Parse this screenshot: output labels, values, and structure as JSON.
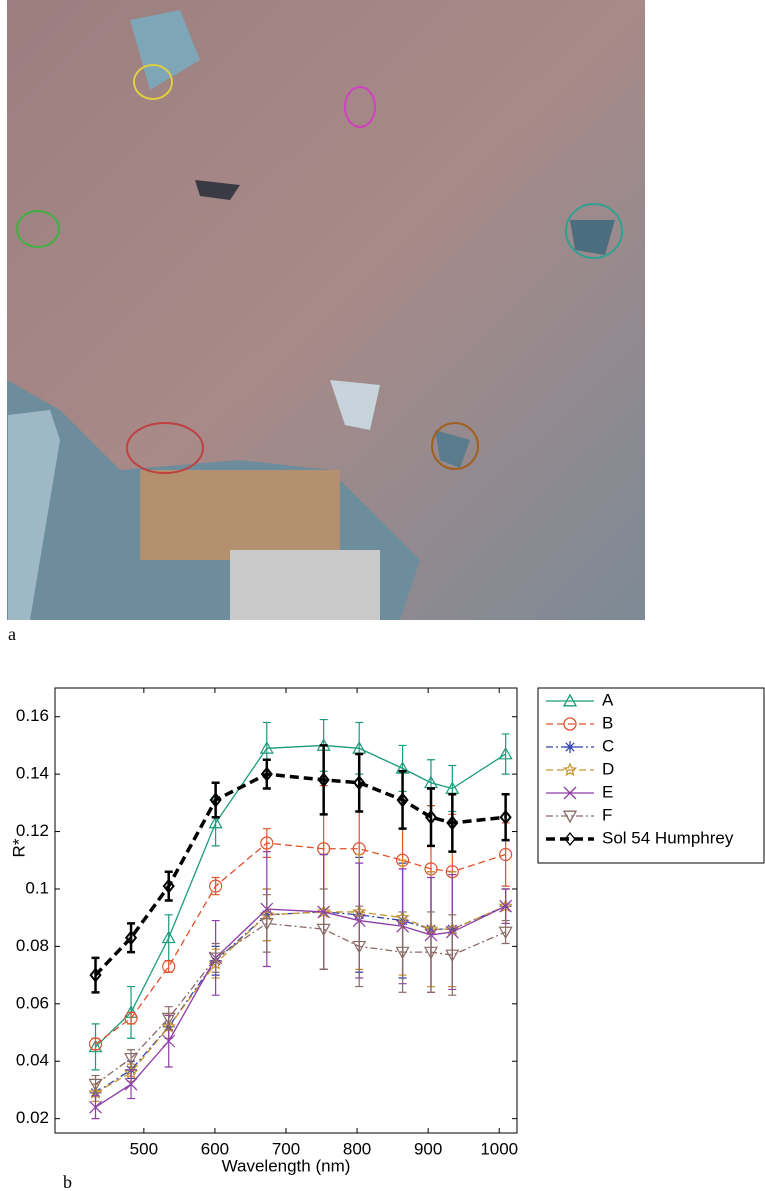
{
  "panel_labels": [
    "a",
    "b"
  ],
  "chart_data": {
    "type": "line",
    "x_label": "Wavelength (nm)",
    "y_label": "R*",
    "x": [
      432,
      482,
      535,
      601,
      673,
      753,
      803,
      864,
      904,
      934,
      1009
    ],
    "xlim": [
      375,
      1025
    ],
    "ylim": [
      0.015,
      0.17
    ],
    "xticks": [
      500,
      600,
      700,
      800,
      900,
      1000
    ],
    "yticks": [
      0.02,
      0.04,
      0.06,
      0.08,
      0.1,
      0.12,
      0.14,
      0.16
    ],
    "legend": "outside-right",
    "series": [
      {
        "name": "A",
        "color": "#1a9b7b",
        "dash": "solid",
        "marker": "triangle",
        "values": [
          0.045,
          0.057,
          0.083,
          0.123,
          0.149,
          0.15,
          0.149,
          0.142,
          0.137,
          0.135,
          0.147
        ],
        "errors": [
          0.008,
          0.009,
          0.008,
          0.008,
          0.009,
          0.009,
          0.009,
          0.008,
          0.008,
          0.008,
          0.007
        ]
      },
      {
        "name": "B",
        "color": "#e0522b",
        "dash": "dashed",
        "marker": "circle",
        "values": [
          0.046,
          0.055,
          0.073,
          0.101,
          0.116,
          0.114,
          0.114,
          0.11,
          0.107,
          0.106,
          0.112
        ],
        "errors": [
          0.002,
          0.002,
          0.002,
          0.003,
          0.005,
          0.022,
          0.022,
          0.022,
          0.022,
          0.02,
          0.011
        ]
      },
      {
        "name": "C",
        "color": "#3344aa",
        "dash": "dashdot",
        "marker": "asterisk",
        "values": [
          0.029,
          0.037,
          0.052,
          0.075,
          0.091,
          0.092,
          0.091,
          0.089,
          0.086,
          0.086,
          0.094
        ],
        "errors": [
          0.003,
          0.003,
          0.004,
          0.005,
          0.009,
          0.02,
          0.02,
          0.02,
          0.02,
          0.02,
          0.006
        ]
      },
      {
        "name": "D",
        "color": "#c9962f",
        "dash": "dashed",
        "marker": "star",
        "values": [
          0.029,
          0.036,
          0.052,
          0.074,
          0.091,
          0.092,
          0.092,
          0.09,
          0.086,
          0.086,
          0.094
        ],
        "errors": [
          0.003,
          0.003,
          0.004,
          0.005,
          0.009,
          0.02,
          0.02,
          0.02,
          0.02,
          0.02,
          0.006
        ]
      },
      {
        "name": "E",
        "color": "#8e3ca8",
        "dash": "solid",
        "marker": "x",
        "values": [
          0.024,
          0.032,
          0.047,
          0.076,
          0.093,
          0.092,
          0.089,
          0.087,
          0.084,
          0.085,
          0.094
        ],
        "errors": [
          0.004,
          0.005,
          0.009,
          0.013,
          0.02,
          0.02,
          0.02,
          0.02,
          0.02,
          0.02,
          0.006
        ]
      },
      {
        "name": "F",
        "color": "#8a6a66",
        "dash": "dashdot",
        "marker": "triangle-down",
        "values": [
          0.032,
          0.041,
          0.055,
          0.076,
          0.088,
          0.086,
          0.08,
          0.078,
          0.078,
          0.077,
          0.085
        ],
        "errors": [
          0.003,
          0.003,
          0.004,
          0.005,
          0.01,
          0.014,
          0.014,
          0.014,
          0.014,
          0.014,
          0.004
        ]
      },
      {
        "name": "Sol 54 Humphrey",
        "color": "#000000",
        "dash": "thick-dashed",
        "marker": "diamond",
        "values": [
          0.07,
          0.083,
          0.101,
          0.131,
          0.14,
          0.138,
          0.137,
          0.131,
          0.125,
          0.123,
          0.125
        ],
        "errors": [
          0.006,
          0.005,
          0.005,
          0.006,
          0.005,
          0.012,
          0.01,
          0.01,
          0.01,
          0.01,
          0.008
        ]
      }
    ]
  }
}
